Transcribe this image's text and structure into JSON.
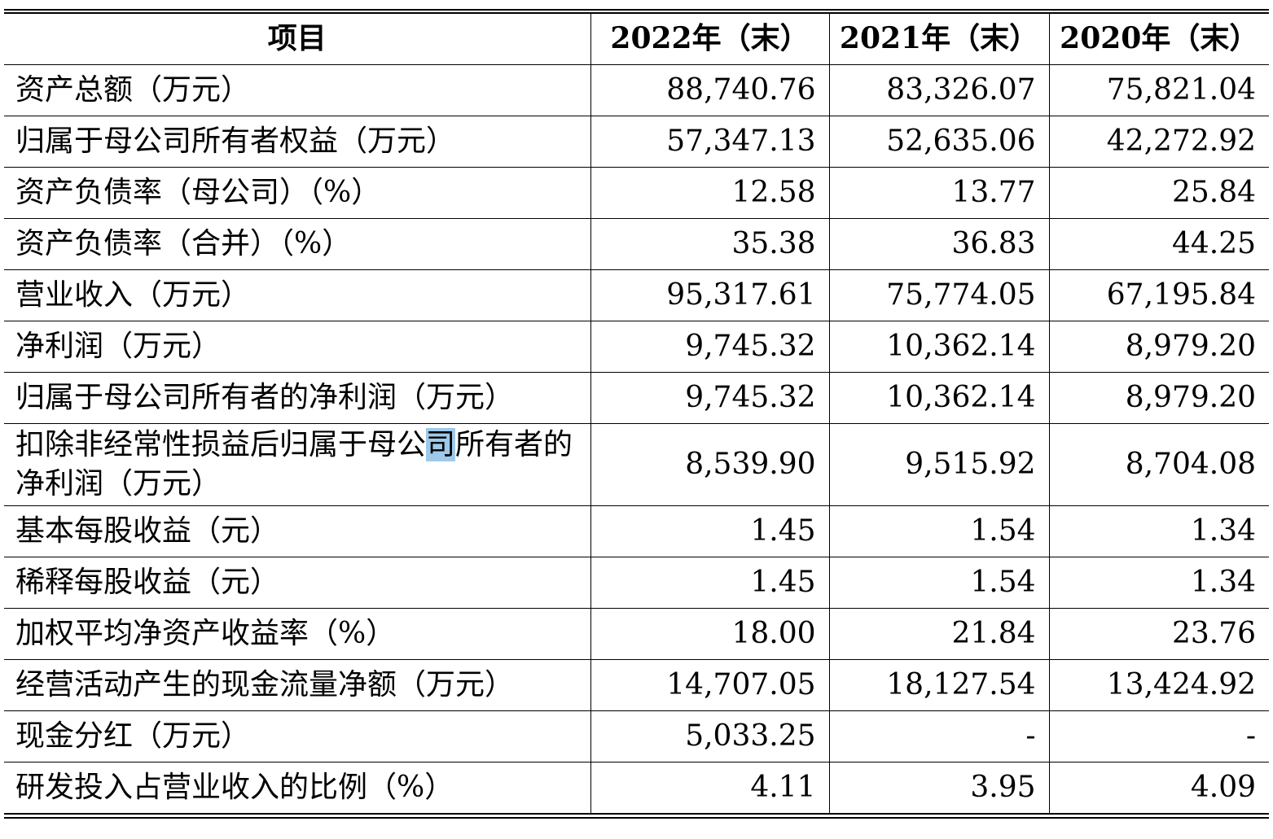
{
  "table": {
    "headers": [
      "项目",
      "2022年（末）",
      "2021年（末）",
      "2020年（末）"
    ],
    "rows": [
      {
        "label": "资产总额（万元）",
        "values": [
          "88,740.76",
          "83,326.07",
          "75,821.04"
        ]
      },
      {
        "label": "归属于母公司所有者权益（万元）",
        "values": [
          "57,347.13",
          "52,635.06",
          "42,272.92"
        ]
      },
      {
        "label": "资产负债率（母公司）（%）",
        "values": [
          "12.58",
          "13.77",
          "25.84"
        ]
      },
      {
        "label": "资产负债率（合并）（%）",
        "values": [
          "35.38",
          "36.83",
          "44.25"
        ]
      },
      {
        "label": "营业收入（万元）",
        "values": [
          "95,317.61",
          "75,774.05",
          "67,195.84"
        ]
      },
      {
        "label": "净利润（万元）",
        "values": [
          "9,745.32",
          "10,362.14",
          "8,979.20"
        ]
      },
      {
        "label": "归属于母公司所有者的净利润（万元）",
        "values": [
          "9,745.32",
          "10,362.14",
          "8,979.20"
        ]
      },
      {
        "label_before": "扣除非经常性损益后归属于母公",
        "label_hl": "司",
        "label_after": "所有者的净利润（万元）",
        "values": [
          "8,539.90",
          "9,515.92",
          "8,704.08"
        ]
      },
      {
        "label": "基本每股收益（元）",
        "values": [
          "1.45",
          "1.54",
          "1.34"
        ]
      },
      {
        "label": "稀释每股收益（元）",
        "values": [
          "1.45",
          "1.54",
          "1.34"
        ]
      },
      {
        "label": "加权平均净资产收益率（%）",
        "values": [
          "18.00",
          "21.84",
          "23.76"
        ]
      },
      {
        "label": "经营活动产生的现金流量净额（万元）",
        "values": [
          "14,707.05",
          "18,127.54",
          "13,424.92"
        ]
      },
      {
        "label": "现金分红（万元）",
        "values": [
          "5,033.25",
          "-",
          "-"
        ]
      },
      {
        "label": "研发投入占营业收入的比例（%）",
        "values": [
          "4.11",
          "3.95",
          "4.09"
        ]
      }
    ]
  }
}
